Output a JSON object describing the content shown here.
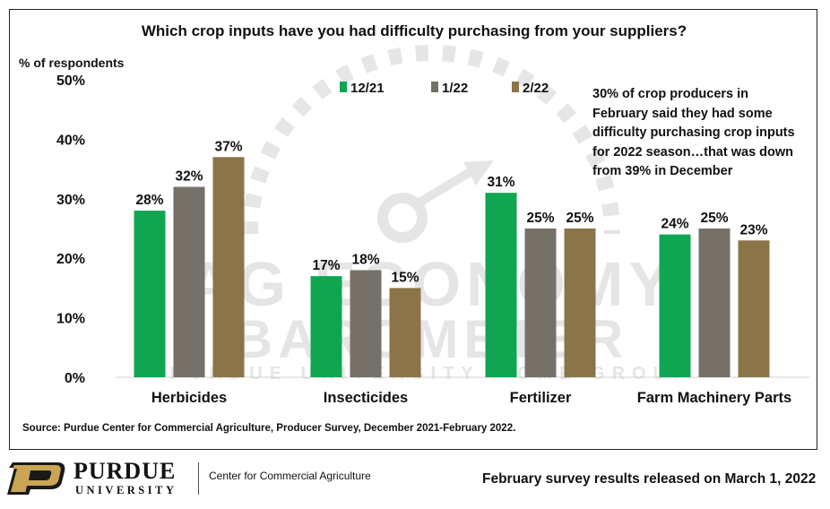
{
  "chart_data": {
    "type": "bar",
    "title": "Which crop inputs have you had difficulty purchasing from your suppliers?",
    "ylabel": "% of respondents",
    "xlabel": "",
    "ylim": [
      0,
      50
    ],
    "yticks": [
      "0%",
      "10%",
      "20%",
      "30%",
      "40%",
      "50%"
    ],
    "grid": false,
    "legend_position": "top",
    "categories": [
      "Herbicides",
      "Insecticides",
      "Fertilizer",
      "Farm Machinery Parts"
    ],
    "series": [
      {
        "name": "12/21",
        "color": "#10a651",
        "values": [
          28,
          17,
          31,
          24
        ]
      },
      {
        "name": "1/22",
        "color": "#767168",
        "values": [
          32,
          18,
          25,
          25
        ]
      },
      {
        "name": "2/22",
        "color": "#8c7449",
        "values": [
          37,
          15,
          25,
          23
        ]
      }
    ],
    "annotation": "30% of crop producers in February said they had some difficulty purchasing crop inputs for 2022 season…that was down from 39% in December"
  },
  "source": "Source:  Purdue Center for Commercial Agriculture, Producer Survey, December 2021-February 2022.",
  "footer": {
    "logo_name": "PURDUE",
    "logo_sub": "UNIVERSITY",
    "center_name": "Center for Commercial Agriculture",
    "release_text": "February survey results released on March 1, 2022"
  },
  "watermark": {
    "line1": "AG ECONOMY",
    "line2": "BAROMETER",
    "line3": "PURDUE UNIVERSITY  ·  CME GROUP",
    "icon": "gauge-icon"
  }
}
